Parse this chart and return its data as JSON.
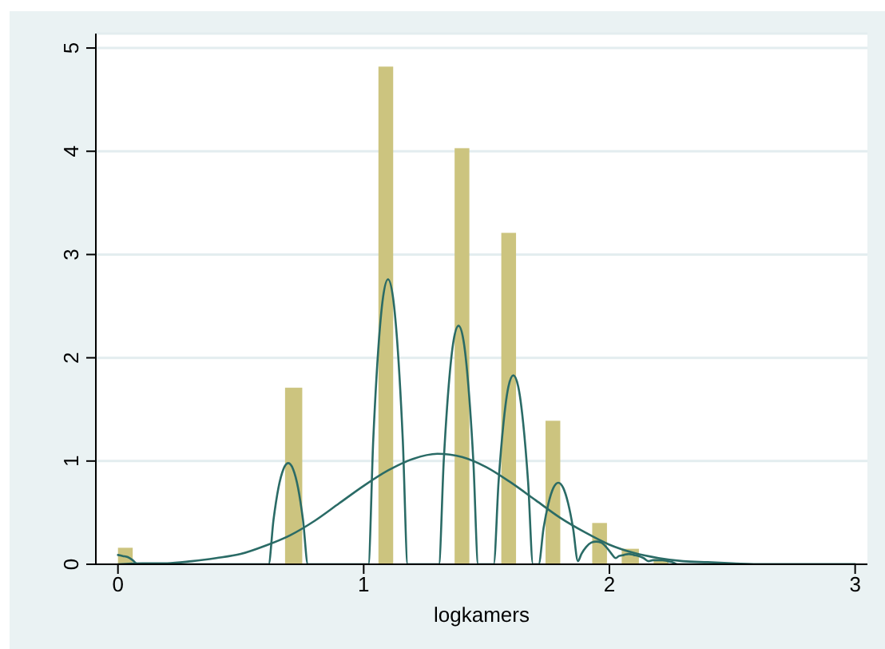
{
  "chart_data": {
    "type": "histogram",
    "xlabel": "logkamers",
    "bins": [
      0,
      0.06,
      0.68,
      0.75,
      1.06,
      1.12,
      1.37,
      1.43,
      1.56,
      1.62,
      1.74,
      1.8,
      1.93,
      1.99,
      2.05,
      2.12,
      2.18,
      2.24
    ],
    "series": [
      {
        "color": "#ccc47f",
        "values": [
          0.16,
          0,
          1.71,
          0,
          4.82,
          0,
          4.03,
          0,
          3.21,
          0,
          1.39,
          0,
          0.4,
          0,
          0.15,
          0,
          0.05
        ]
      },
      {
        "type": "line",
        "color": "#2a6b66",
        "x": [
          0,
          0.02,
          0.04,
          0.06,
          0.08,
          0.613,
          0.633,
          0.653,
          0.673,
          0.693,
          0.713,
          0.733,
          0.753,
          0.773,
          1.019,
          1.039,
          1.059,
          1.079,
          1.099,
          1.119,
          1.139,
          1.159,
          1.179,
          1.306,
          1.326,
          1.346,
          1.366,
          1.386,
          1.406,
          1.426,
          1.446,
          1.466,
          1.529,
          1.549,
          1.569,
          1.589,
          1.609,
          1.629,
          1.649,
          1.669,
          1.689,
          1.712,
          1.732,
          1.752,
          1.772,
          1.792,
          1.812,
          1.832,
          1.852,
          1.872,
          1.886,
          1.906,
          1.926,
          1.946,
          1.966,
          1.986,
          2.006,
          2.026,
          2.039,
          2.059,
          2.079,
          2.099,
          2.119,
          2.139,
          2.159,
          2.177,
          2.197,
          2.217,
          2.237,
          2.257,
          2.277,
          3
        ],
        "values": [
          0.09,
          0.08,
          0.07,
          0.04,
          0,
          0,
          0.43,
          0.74,
          0.92,
          0.98,
          0.92,
          0.74,
          0.43,
          0,
          0,
          1.21,
          2.07,
          2.59,
          2.76,
          2.59,
          2.07,
          1.21,
          0,
          0,
          1.01,
          1.73,
          2.17,
          2.31,
          2.17,
          1.73,
          1.01,
          0,
          0,
          0.8,
          1.37,
          1.72,
          1.83,
          1.72,
          1.37,
          0.8,
          0,
          0,
          0.35,
          0.59,
          0.74,
          0.79,
          0.74,
          0.59,
          0.35,
          0.03,
          0.1,
          0.17,
          0.21,
          0.22,
          0.21,
          0.17,
          0.11,
          0.06,
          0.08,
          0.09,
          0.1,
          0.09,
          0.08,
          0.06,
          0.03,
          0.04,
          0.04,
          0.04,
          0.03,
          0.02,
          0,
          0
        ]
      },
      {
        "type": "line",
        "color": "#2a6b66",
        "x": [
          0,
          0.1,
          0.2,
          0.3,
          0.4,
          0.5,
          0.6,
          0.7,
          0.8,
          0.9,
          1,
          1.1,
          1.2,
          1.3,
          1.4,
          1.5,
          1.6,
          1.7,
          1.8,
          1.9,
          2,
          2.1,
          2.2,
          2.3,
          2.4,
          2.5,
          2.6,
          2.8,
          3
        ],
        "values": [
          0,
          0.01,
          0.01,
          0.03,
          0.06,
          0.1,
          0.18,
          0.28,
          0.42,
          0.59,
          0.76,
          0.91,
          1.02,
          1.07,
          1.04,
          0.94,
          0.79,
          0.62,
          0.45,
          0.31,
          0.19,
          0.11,
          0.06,
          0.03,
          0.02,
          0.01,
          0,
          0,
          0
        ]
      }
    ],
    "xlim": [
      -0.09,
      3.05
    ],
    "xticks": [
      0,
      1,
      2,
      3
    ],
    "ylim": [
      0,
      5.14
    ],
    "yticks": [
      0,
      1,
      2,
      3,
      4,
      5
    ],
    "grid": "y"
  }
}
